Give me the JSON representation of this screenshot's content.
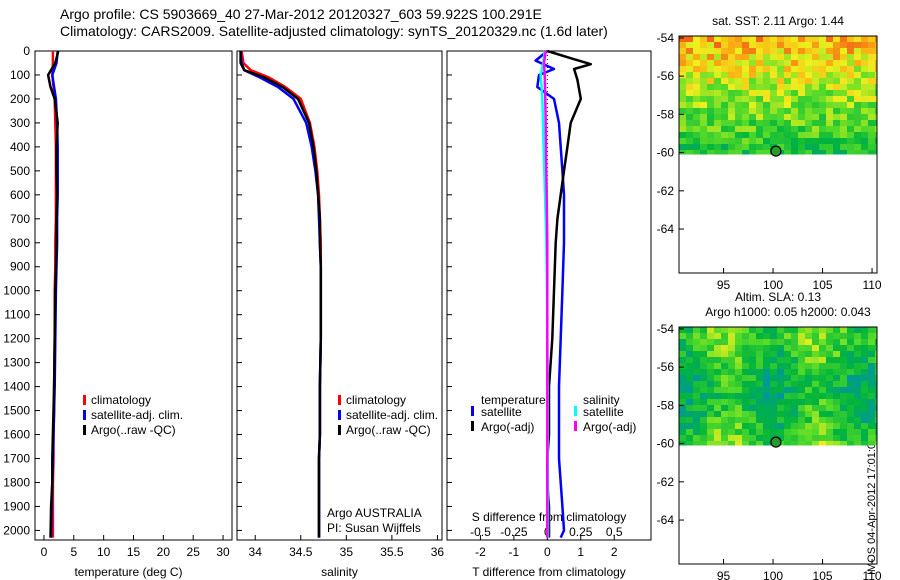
{
  "title_line1": "Argo profile: CS 5903669_40 27-Mar-2012 20120327_603 59.922S 100.291E",
  "title_line2": "Climatology: CARS2009. Satellite-adjusted climatology: synTS_20120329.nc (1.6d later)",
  "side_stamp": "IMOS 04-Apr-2012 17:01:01",
  "colors": {
    "climatology": "#ff0000",
    "satellite": "#0000ff",
    "argo": "#000000",
    "sal_satellite": "#00ffff",
    "sal_argo": "#ff00ff",
    "zero_line": "#000000"
  },
  "chart_data": [
    {
      "type": "line",
      "id": "temperature",
      "xlabel": "temperature (deg C)",
      "x_ticks": [
        0,
        5,
        10,
        15,
        20,
        25,
        30
      ],
      "xlim": [
        -1.5,
        31.5
      ],
      "y_ticks": [
        0,
        100,
        200,
        300,
        400,
        500,
        600,
        700,
        800,
        900,
        1000,
        1100,
        1200,
        1300,
        1400,
        1500,
        1600,
        1700,
        1800,
        1900,
        2000
      ],
      "ylim": [
        2040,
        0
      ],
      "legend": [
        "climatology",
        "satellite-adj. clim.",
        "Argo(..raw -QC)"
      ],
      "legend_position": "lower-center",
      "series": [
        {
          "name": "climatology",
          "color": "#ff0000",
          "x": [
            1.5,
            1.5,
            1.4,
            1.6,
            1.8,
            1.9,
            2.0,
            2.0,
            2.0,
            2.0,
            1.9,
            1.9,
            1.8,
            1.8,
            1.7,
            1.7,
            1.6,
            1.6,
            1.5,
            1.5,
            1.5
          ],
          "y": [
            0,
            50,
            100,
            150,
            200,
            300,
            400,
            500,
            600,
            700,
            800,
            900,
            1000,
            1200,
            1400,
            1500,
            1600,
            1700,
            1800,
            1900,
            2030
          ]
        },
        {
          "name": "satellite-adj. clim.",
          "color": "#0000ff",
          "x": [
            2.3,
            2.1,
            1.4,
            1.7,
            2.0,
            2.2,
            2.3,
            2.3,
            2.3,
            2.2,
            2.2,
            2.1,
            2.0,
            1.9,
            1.8,
            1.7,
            1.6,
            1.5,
            1.4,
            1.3,
            1.2
          ],
          "y": [
            0,
            50,
            100,
            150,
            200,
            300,
            400,
            500,
            600,
            700,
            800,
            900,
            1000,
            1200,
            1400,
            1500,
            1600,
            1700,
            1800,
            1900,
            2030
          ]
        },
        {
          "name": "Argo(..raw -QC)",
          "color": "#000000",
          "x": [
            2.4,
            1.9,
            0.7,
            1.1,
            1.8,
            2.3,
            2.1,
            2.1,
            2.2,
            2.1,
            2.1,
            2.0,
            1.9,
            1.8,
            1.7,
            1.6,
            1.5,
            1.4,
            1.4,
            1.2,
            1.1
          ],
          "y": [
            0,
            50,
            100,
            150,
            200,
            300,
            400,
            500,
            600,
            700,
            800,
            900,
            1000,
            1200,
            1400,
            1500,
            1600,
            1700,
            1800,
            1900,
            2030
          ]
        }
      ]
    },
    {
      "type": "line",
      "id": "salinity",
      "xlabel": "salinity",
      "x_ticks": [
        34,
        34.5,
        35,
        35.5,
        36
      ],
      "x_tick_labels": [
        "34",
        "34.5",
        "35",
        "35.5",
        "36"
      ],
      "xlim": [
        33.8,
        36.05
      ],
      "ylim": [
        2040,
        0
      ],
      "legend": [
        "climatology",
        "satellite-adj. clim.",
        "Argo(..raw -QC)"
      ],
      "legend_position": "lower-right",
      "annotation": [
        "Argo AUSTRALIA",
        "PI: Susan Wijffels"
      ],
      "series": [
        {
          "name": "climatology",
          "color": "#ff0000",
          "x": [
            33.85,
            33.87,
            33.95,
            34.15,
            34.33,
            34.5,
            34.6,
            34.65,
            34.68,
            34.7,
            34.71,
            34.72,
            34.72,
            34.72,
            34.72,
            34.71,
            34.71,
            34.71,
            34.7,
            34.7,
            34.7,
            34.7
          ],
          "y": [
            0,
            50,
            80,
            110,
            150,
            200,
            300,
            400,
            500,
            600,
            700,
            800,
            900,
            1000,
            1200,
            1400,
            1500,
            1600,
            1700,
            1800,
            1900,
            2030
          ]
        },
        {
          "name": "satellite-adj. clim.",
          "color": "#0000ff",
          "x": [
            33.84,
            33.85,
            33.88,
            34.05,
            34.25,
            34.42,
            34.56,
            34.62,
            34.66,
            34.69,
            34.7,
            34.71,
            34.72,
            34.72,
            34.72,
            34.71,
            34.71,
            34.71,
            34.7,
            34.7,
            34.7,
            34.7
          ],
          "y": [
            0,
            50,
            80,
            110,
            150,
            200,
            300,
            400,
            500,
            600,
            700,
            800,
            900,
            1000,
            1200,
            1400,
            1500,
            1600,
            1700,
            1800,
            1900,
            2030
          ]
        },
        {
          "name": "Argo(..raw -QC)",
          "color": "#000000",
          "x": [
            33.84,
            33.84,
            33.88,
            34.1,
            34.3,
            34.47,
            34.59,
            34.64,
            34.67,
            34.69,
            34.71,
            34.71,
            34.72,
            34.72,
            34.72,
            34.71,
            34.71,
            34.71,
            34.7,
            34.7,
            34.7,
            34.7
          ],
          "y": [
            0,
            50,
            80,
            110,
            150,
            200,
            300,
            400,
            500,
            600,
            700,
            800,
            900,
            1000,
            1200,
            1400,
            1500,
            1600,
            1700,
            1800,
            1900,
            2030
          ]
        }
      ]
    },
    {
      "type": "line",
      "id": "difference",
      "xlabel": "T difference from climatology",
      "top_axis_label": "S difference from climatology",
      "x_ticks": [
        -2,
        -1,
        0,
        1,
        2
      ],
      "xlim": [
        -3.0,
        3.1
      ],
      "top_ticks": [
        -0.5,
        -0.25,
        0,
        0.25,
        0.5
      ],
      "top_tick_labels": [
        "-0.5",
        "-0.25",
        "0",
        "0.25",
        "0.5"
      ],
      "top_xlim": [
        -0.75,
        0.775
      ],
      "ylim": [
        2040,
        0
      ],
      "legend_temperature": [
        "temperature",
        "satellite",
        "Argo(-adj)"
      ],
      "legend_salinity": [
        "salinity",
        "satellite",
        "Argo(-adj)"
      ],
      "legend_position": "lower-center",
      "series": [
        {
          "name": "temperature satellite",
          "color": "#0000ff",
          "x": [
            0.0,
            -0.35,
            0.2,
            -0.25,
            -0.3,
            0.2,
            0.35,
            0.4,
            0.45,
            0.5,
            0.5,
            0.5,
            0.45,
            0.4,
            0.35,
            0.35,
            0.35,
            0.35,
            0.4,
            0.45,
            0.5,
            0.4
          ],
          "y": [
            0,
            40,
            75,
            100,
            150,
            200,
            300,
            400,
            500,
            600,
            700,
            800,
            1000,
            1200,
            1400,
            1500,
            1600,
            1700,
            1800,
            1900,
            2000,
            2030
          ]
        },
        {
          "name": "temperature Argo(-adj)",
          "color": "#000000",
          "x": [
            0.0,
            0.7,
            1.3,
            0.8,
            0.9,
            1.0,
            0.7,
            0.6,
            0.5,
            0.4,
            0.3,
            0.25,
            0.2,
            0.15,
            0.05,
            0.05,
            0.05,
            0.0,
            0.0,
            0.05,
            0.05,
            0.05
          ],
          "y": [
            0,
            30,
            55,
            75,
            120,
            200,
            300,
            400,
            500,
            600,
            700,
            800,
            1000,
            1200,
            1400,
            1500,
            1600,
            1700,
            1800,
            1900,
            2000,
            2030
          ]
        },
        {
          "name": "salinity satellite",
          "color": "#00ffff",
          "x": [
            -0.08,
            -0.12,
            -0.2,
            -0.17,
            -0.15,
            -0.13,
            -0.11,
            -0.09,
            -0.07,
            -0.05,
            -0.03,
            -0.02,
            -0.01,
            0.0,
            0.01,
            0.01,
            0.01,
            0.01,
            0.02,
            0.02,
            0.02
          ],
          "y": [
            0,
            50,
            100,
            150,
            200,
            300,
            400,
            500,
            600,
            700,
            800,
            900,
            1000,
            1200,
            1400,
            1500,
            1600,
            1700,
            1800,
            1900,
            2030
          ]
        },
        {
          "name": "salinity Argo(-adj)",
          "color": "#ff00ff",
          "x": [
            -0.05,
            -0.1,
            -0.08,
            -0.07,
            -0.06,
            -0.05,
            -0.04,
            -0.03,
            -0.02,
            -0.01,
            0.0,
            0.0,
            0.0,
            0.0,
            0.0,
            0.0,
            0.0,
            0.0,
            0.0,
            0.0
          ],
          "y": [
            0,
            50,
            100,
            150,
            200,
            300,
            400,
            500,
            600,
            700,
            800,
            900,
            1000,
            1200,
            1400,
            1600,
            1700,
            1800,
            1900,
            2030
          ]
        }
      ]
    },
    {
      "type": "heatmap",
      "id": "sst_map",
      "title": "sat. SST: 2.11  Argo: 1.44",
      "x_ticks": [
        95,
        100,
        105,
        110
      ],
      "xlim": [
        90.5,
        110.5
      ],
      "y_ticks": [
        -54,
        -56,
        -58,
        -60,
        -62,
        -64
      ],
      "ylim": [
        -66.3,
        -53.9
      ],
      "data_lat_range": [
        -60.1,
        -53.9
      ],
      "profile_marker": {
        "lon": 100.291,
        "lat": -59.922
      }
    },
    {
      "type": "heatmap",
      "id": "sla_map",
      "title_lines": [
        "Altim. SLA: 0.13",
        "Argo h1000: 0.05  h2000: 0.043"
      ],
      "x_ticks": [
        95,
        100,
        105,
        110
      ],
      "xlim": [
        90.5,
        110.5
      ],
      "y_ticks": [
        -54,
        -56,
        -58,
        -60,
        -62,
        -64
      ],
      "ylim": [
        -66.3,
        -53.9
      ],
      "data_lat_range": [
        -60.1,
        -53.9
      ],
      "profile_marker": {
        "lon": 100.291,
        "lat": -59.922
      }
    }
  ]
}
